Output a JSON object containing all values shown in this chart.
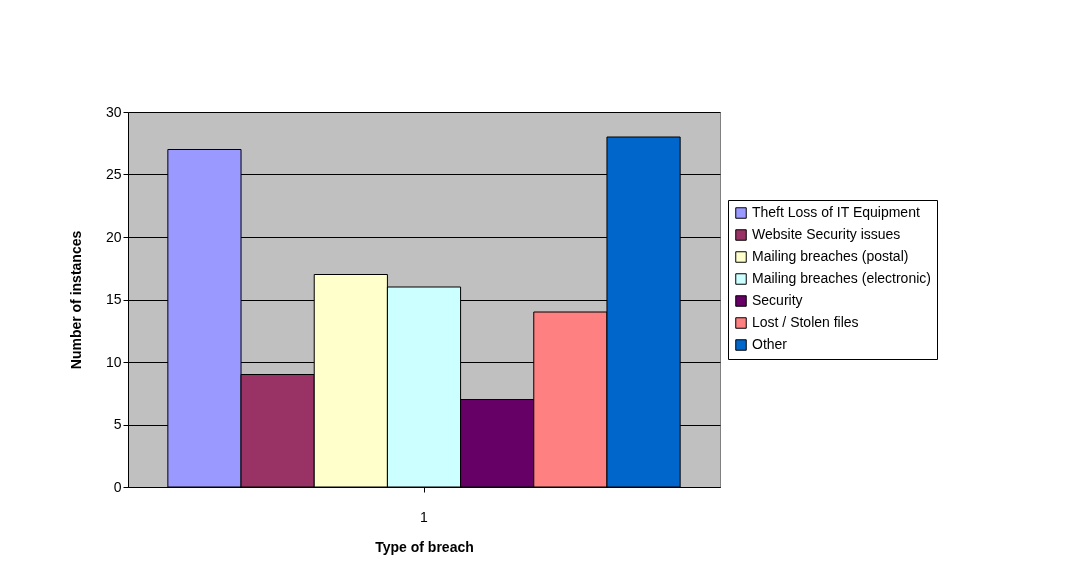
{
  "chart_data": {
    "type": "bar",
    "categories": [
      "1"
    ],
    "xlabel": "Type of breach",
    "ylabel": "Number of instances",
    "ylim": [
      0,
      30
    ],
    "yticks": [
      0,
      5,
      10,
      15,
      20,
      25,
      30
    ],
    "grid": "y",
    "legend": "right",
    "series": [
      {
        "name": "Theft Loss of IT Equipment",
        "color": "#9999ff",
        "values": [
          27
        ]
      },
      {
        "name": "Website Security issues",
        "color": "#993366",
        "values": [
          9
        ]
      },
      {
        "name": "Mailing breaches (postal)",
        "color": "#ffffcc",
        "values": [
          17
        ]
      },
      {
        "name": "Mailing breaches (electronic)",
        "color": "#ccffff",
        "values": [
          16
        ]
      },
      {
        "name": "Security",
        "color": "#660066",
        "values": [
          7
        ]
      },
      {
        "name": "Lost / Stolen files",
        "color": "#ff8080",
        "values": [
          14
        ]
      },
      {
        "name": "Other",
        "color": "#0066cc",
        "values": [
          28
        ]
      }
    ]
  }
}
